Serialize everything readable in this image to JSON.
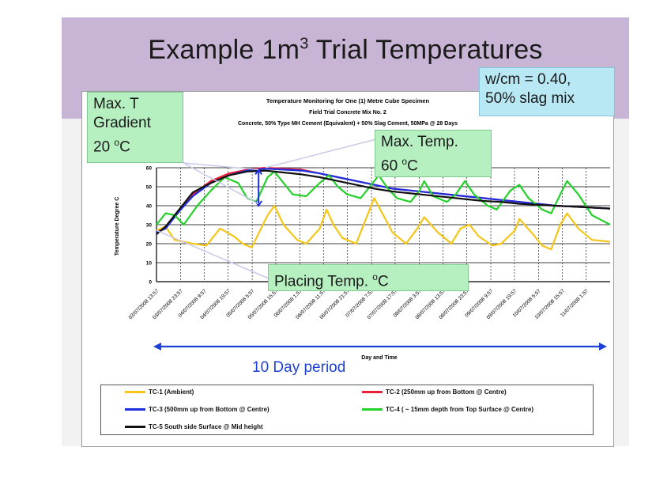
{
  "slide": {
    "title_main": "Example 1m",
    "title_sup": "3",
    "title_rest": " Trial Temperatures"
  },
  "callouts": {
    "mix_line1": "w/cm = 0.40,",
    "mix_line2": "50% slag mix",
    "gradient_line1": "Max. T",
    "gradient_line2": "Gradient",
    "gradient_line3": "20 ",
    "max_temp_line1": "Max. Temp.",
    "max_temp_line2": "60 ",
    "placing": "Placing Temp. ",
    "degree_sup": "o",
    "degree_unit": "C",
    "period": "10 Day period"
  },
  "chart_data": {
    "type": "line",
    "title": "Temperature Monitoring for One (1) Metre Cube Specimen",
    "subtitle1": "Field Trial Concrete Mix No. 2",
    "subtitle2": "Concrete, 50% Type MH Cement (Equivalent) + 50% Slag Cement, 50MPa @ 28 Days",
    "xlabel": "Day and Time",
    "ylabel": "Temperature Degree C",
    "ylim": [
      0,
      60
    ],
    "yticks": [
      0,
      10,
      20,
      30,
      40,
      50,
      60
    ],
    "xlim": [
      0,
      1
    ],
    "grid": true,
    "legend_position": "bottom",
    "x_ticks": [
      {
        "x": 0.0,
        "label": "03/07/2008 13:57"
      },
      {
        "x": 0.053,
        "label": "03/07/2008 23:57"
      },
      {
        "x": 0.105,
        "label": "04/07/2008 9:57"
      },
      {
        "x": 0.158,
        "label": "04/07/2008 19:57"
      },
      {
        "x": 0.211,
        "label": "05/07/2008 5:57"
      },
      {
        "x": 0.263,
        "label": "05/07/2008 15:57"
      },
      {
        "x": 0.316,
        "label": "06/07/2008 1:57"
      },
      {
        "x": 0.368,
        "label": "06/07/2008 11:57"
      },
      {
        "x": 0.421,
        "label": "06/07/2008 21:57"
      },
      {
        "x": 0.474,
        "label": "07/07/2008 7:57"
      },
      {
        "x": 0.526,
        "label": "07/07/2008 17:57"
      },
      {
        "x": 0.579,
        "label": "08/07/2008 3:57"
      },
      {
        "x": 0.632,
        "label": "08/07/2008 13:57"
      },
      {
        "x": 0.684,
        "label": "08/07/2008 23:57"
      },
      {
        "x": 0.737,
        "label": "09/07/2008 9:57"
      },
      {
        "x": 0.789,
        "label": "09/07/2008 19:57"
      },
      {
        "x": 0.842,
        "label": "10/07/2008 5:57"
      },
      {
        "x": 0.895,
        "label": "10/07/2008 15:57"
      },
      {
        "x": 0.947,
        "label": "11/07/2008 1:57"
      }
    ],
    "series": [
      {
        "name": "TC-1 (Ambient)",
        "color": "#f5c518",
        "points": [
          [
            0,
            27
          ],
          [
            0.02,
            29
          ],
          [
            0.04,
            22
          ],
          [
            0.08,
            20
          ],
          [
            0.11,
            19
          ],
          [
            0.14,
            28
          ],
          [
            0.17,
            24
          ],
          [
            0.19,
            20
          ],
          [
            0.21,
            18
          ],
          [
            0.245,
            35
          ],
          [
            0.26,
            40
          ],
          [
            0.28,
            30
          ],
          [
            0.31,
            22
          ],
          [
            0.33,
            20
          ],
          [
            0.36,
            28
          ],
          [
            0.375,
            38
          ],
          [
            0.39,
            30
          ],
          [
            0.41,
            23
          ],
          [
            0.44,
            20
          ],
          [
            0.47,
            38
          ],
          [
            0.48,
            44
          ],
          [
            0.5,
            35
          ],
          [
            0.52,
            26
          ],
          [
            0.55,
            20
          ],
          [
            0.575,
            28
          ],
          [
            0.59,
            34
          ],
          [
            0.62,
            26
          ],
          [
            0.65,
            20
          ],
          [
            0.67,
            28
          ],
          [
            0.69,
            30
          ],
          [
            0.71,
            24
          ],
          [
            0.74,
            19
          ],
          [
            0.76,
            20
          ],
          [
            0.79,
            27
          ],
          [
            0.8,
            33
          ],
          [
            0.83,
            25
          ],
          [
            0.85,
            19
          ],
          [
            0.87,
            17
          ],
          [
            0.89,
            30
          ],
          [
            0.905,
            36
          ],
          [
            0.93,
            28
          ],
          [
            0.96,
            22
          ],
          [
            1.0,
            21
          ]
        ]
      },
      {
        "name": "TC-2 (250mm up from Bottom @ Centre)",
        "color": "#e8203a",
        "points": [
          [
            0,
            26
          ],
          [
            0.02,
            28
          ],
          [
            0.05,
            38
          ],
          [
            0.08,
            46
          ],
          [
            0.12,
            53
          ],
          [
            0.16,
            57
          ],
          [
            0.2,
            59
          ],
          [
            0.24,
            60
          ],
          [
            0.28,
            59.5
          ],
          [
            0.32,
            59
          ],
          [
            0.36,
            57
          ],
          [
            0.4,
            55
          ],
          [
            0.44,
            53
          ],
          [
            0.48,
            51
          ],
          [
            0.52,
            49
          ],
          [
            0.56,
            48
          ],
          [
            0.6,
            47
          ],
          [
            0.64,
            46
          ],
          [
            0.68,
            45
          ],
          [
            0.72,
            44
          ],
          [
            0.76,
            43
          ],
          [
            0.8,
            42
          ],
          [
            0.84,
            41
          ],
          [
            0.88,
            40
          ],
          [
            0.92,
            39.5
          ],
          [
            0.96,
            39
          ],
          [
            1.0,
            38.5
          ]
        ]
      },
      {
        "name": "TC-3 (500mm up from Bottom @ Centre)",
        "color": "#1c2ee0",
        "points": [
          [
            0,
            26
          ],
          [
            0.02,
            28
          ],
          [
            0.05,
            37
          ],
          [
            0.08,
            45
          ],
          [
            0.12,
            52
          ],
          [
            0.16,
            56
          ],
          [
            0.2,
            58.5
          ],
          [
            0.24,
            59.5
          ],
          [
            0.28,
            59
          ],
          [
            0.32,
            58.5
          ],
          [
            0.36,
            57
          ],
          [
            0.4,
            55
          ],
          [
            0.44,
            53
          ],
          [
            0.48,
            51
          ],
          [
            0.52,
            49
          ],
          [
            0.56,
            48
          ],
          [
            0.6,
            47
          ],
          [
            0.64,
            46
          ],
          [
            0.68,
            45
          ],
          [
            0.72,
            44
          ],
          [
            0.76,
            43
          ],
          [
            0.8,
            42
          ],
          [
            0.84,
            41
          ],
          [
            0.88,
            40
          ],
          [
            0.92,
            39.5
          ],
          [
            0.96,
            39
          ],
          [
            1.0,
            38.5
          ]
        ]
      },
      {
        "name": "TC-4 ( ~ 15mm depth from Top Surface @ Centre)",
        "color": "#23d12a",
        "points": [
          [
            0,
            30
          ],
          [
            0.02,
            36
          ],
          [
            0.04,
            35
          ],
          [
            0.06,
            30
          ],
          [
            0.09,
            40
          ],
          [
            0.12,
            48
          ],
          [
            0.15,
            55
          ],
          [
            0.18,
            52
          ],
          [
            0.2,
            44
          ],
          [
            0.22,
            42
          ],
          [
            0.245,
            55
          ],
          [
            0.26,
            58
          ],
          [
            0.28,
            52
          ],
          [
            0.3,
            46
          ],
          [
            0.33,
            45
          ],
          [
            0.36,
            52
          ],
          [
            0.38,
            56
          ],
          [
            0.4,
            50
          ],
          [
            0.42,
            46
          ],
          [
            0.45,
            44
          ],
          [
            0.47,
            50
          ],
          [
            0.49,
            56
          ],
          [
            0.51,
            49
          ],
          [
            0.53,
            44
          ],
          [
            0.56,
            42
          ],
          [
            0.58,
            48
          ],
          [
            0.59,
            53
          ],
          [
            0.61,
            45
          ],
          [
            0.64,
            42
          ],
          [
            0.66,
            46
          ],
          [
            0.68,
            53
          ],
          [
            0.7,
            46
          ],
          [
            0.73,
            40
          ],
          [
            0.75,
            38
          ],
          [
            0.78,
            48
          ],
          [
            0.8,
            51
          ],
          [
            0.82,
            44
          ],
          [
            0.85,
            38
          ],
          [
            0.87,
            36
          ],
          [
            0.89,
            46
          ],
          [
            0.905,
            53
          ],
          [
            0.93,
            46
          ],
          [
            0.96,
            35
          ],
          [
            1.0,
            30
          ]
        ]
      },
      {
        "name": "TC-5 South side Surface @ Mid height",
        "color": "#111111",
        "points": [
          [
            0,
            25
          ],
          [
            0.02,
            29
          ],
          [
            0.05,
            38
          ],
          [
            0.08,
            47
          ],
          [
            0.12,
            52
          ],
          [
            0.16,
            56
          ],
          [
            0.2,
            58
          ],
          [
            0.24,
            58.5
          ],
          [
            0.28,
            57.5
          ],
          [
            0.32,
            56.5
          ],
          [
            0.36,
            55
          ],
          [
            0.4,
            53
          ],
          [
            0.44,
            51
          ],
          [
            0.48,
            49
          ],
          [
            0.52,
            47.5
          ],
          [
            0.56,
            46.5
          ],
          [
            0.6,
            45.5
          ],
          [
            0.64,
            44.5
          ],
          [
            0.68,
            43.5
          ],
          [
            0.72,
            42.5
          ],
          [
            0.76,
            42
          ],
          [
            0.8,
            41
          ],
          [
            0.84,
            40.5
          ],
          [
            0.88,
            40
          ],
          [
            0.92,
            39.5
          ],
          [
            0.96,
            39
          ],
          [
            1.0,
            38.5
          ]
        ]
      }
    ]
  }
}
